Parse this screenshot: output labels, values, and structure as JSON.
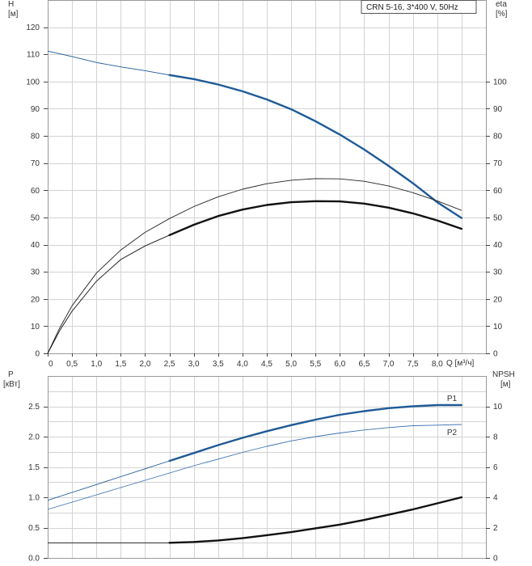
{
  "chart_data": [
    {
      "type": "line",
      "legend": "CRN 5-16, 3*400 V, 50Hz",
      "legend_position": "top-right",
      "grid": true,
      "xlabel": "Q [м³/ч]",
      "ylabel_left": [
        "H",
        "[м]"
      ],
      "ylabel_right": [
        "eta",
        "[%]"
      ],
      "xlim": [
        0,
        9.0
      ],
      "ylim_left": [
        0,
        130
      ],
      "ylim_right": [
        0,
        130
      ],
      "x_ticks": [
        "0",
        "0,5",
        "1,0",
        "1,5",
        "2,0",
        "2,5",
        "3,0",
        "3,5",
        "4,0",
        "4,5",
        "5,0",
        "5,5",
        "6,0",
        "6,5",
        "7,0",
        "7,5",
        "8,0"
      ],
      "y_ticks_left": [
        "0",
        "10",
        "20",
        "30",
        "40",
        "50",
        "60",
        "70",
        "80",
        "90",
        "100",
        "110",
        "120"
      ],
      "y_ticks_right": [
        "0",
        "10",
        "20",
        "30",
        "40",
        "50",
        "60",
        "70",
        "80",
        "90",
        "100"
      ],
      "series": [
        {
          "axis": "left",
          "color": "#1f5a96",
          "thin_x": [
            0,
            0.5,
            1.0,
            1.5,
            2.0,
            2.5
          ],
          "thin_y": [
            111.2,
            109.2,
            107.0,
            105.4,
            104.0,
            102.4
          ],
          "thick_x": [
            2.5,
            3.0,
            3.5,
            4.0,
            4.5,
            5.0,
            5.5,
            6.0,
            6.5,
            7.0,
            7.5,
            8.0,
            8.5
          ],
          "thick_y": [
            102.4,
            100.9,
            98.9,
            96.4,
            93.4,
            89.8,
            85.4,
            80.5,
            75.0,
            69.0,
            62.6,
            55.6,
            49.8
          ]
        },
        {
          "axis": "right",
          "color": "#222222",
          "thin_x": [
            0,
            0.25,
            0.5,
            1.0,
            1.5,
            2.0,
            2.5,
            3.0,
            3.5,
            4.0,
            4.5,
            5.0,
            5.5,
            6.0,
            6.5,
            7.0,
            7.5,
            8.0,
            8.5
          ],
          "thin_y": [
            0,
            9.5,
            17.5,
            29.5,
            38.0,
            44.5,
            49.6,
            54.0,
            57.6,
            60.4,
            62.4,
            63.7,
            64.3,
            64.2,
            63.3,
            61.6,
            59.1,
            56.1,
            52.6
          ]
        },
        {
          "axis": "right",
          "color": "#111111",
          "thin_x": [
            0,
            0.25,
            0.5,
            1.0,
            1.5,
            2.0,
            2.5
          ],
          "thin_y": [
            0,
            8.5,
            15.5,
            26.5,
            34.5,
            39.5,
            43.5
          ],
          "thick_x": [
            2.5,
            3.0,
            3.5,
            4.0,
            4.5,
            5.0,
            5.5,
            6.0,
            6.5,
            7.0,
            7.5,
            8.0,
            8.5
          ],
          "thick_y": [
            43.5,
            47.3,
            50.5,
            52.9,
            54.6,
            55.6,
            56.0,
            55.9,
            55.1,
            53.6,
            51.5,
            48.9,
            45.8
          ]
        }
      ]
    },
    {
      "type": "line",
      "grid": true,
      "ylabel_left": [
        "P",
        "[кВт]"
      ],
      "ylabel_right": [
        "NPSH",
        "[м]"
      ],
      "xlim": [
        0,
        9.0
      ],
      "ylim_left": [
        0,
        3.0
      ],
      "ylim_right": [
        0,
        12
      ],
      "y_ticks_left": [
        "0.0",
        "0.5",
        "1.0",
        "1.5",
        "2.0",
        "2.5"
      ],
      "y_ticks_right": [
        "0",
        "2",
        "4",
        "6",
        "8",
        "10"
      ],
      "series": [
        {
          "name": "P1",
          "axis": "left",
          "color": "#1f5a96",
          "thin_x": [
            0,
            0.5,
            1.0,
            1.5,
            2.0,
            2.5
          ],
          "thin_y": [
            0.95,
            1.08,
            1.21,
            1.34,
            1.47,
            1.6
          ],
          "thick_x": [
            2.5,
            3.0,
            3.5,
            4.0,
            4.5,
            5.0,
            5.5,
            6.0,
            6.5,
            7.0,
            7.5,
            8.0,
            8.5
          ],
          "thick_y": [
            1.6,
            1.73,
            1.86,
            1.98,
            2.09,
            2.19,
            2.28,
            2.36,
            2.42,
            2.47,
            2.5,
            2.52,
            2.52
          ]
        },
        {
          "name": "P2",
          "axis": "left",
          "color": "#3b72b0",
          "thin_x": [
            0,
            0.5,
            1.0,
            1.5,
            2.0,
            2.5,
            3.0,
            3.5,
            4.0,
            4.5,
            5.0,
            5.5,
            6.0,
            6.5,
            7.0,
            7.5,
            8.0,
            8.5
          ],
          "thin_y": [
            0.8,
            0.92,
            1.04,
            1.16,
            1.28,
            1.4,
            1.52,
            1.63,
            1.74,
            1.84,
            1.93,
            2.0,
            2.06,
            2.11,
            2.15,
            2.18,
            2.19,
            2.2
          ]
        },
        {
          "axis": "right",
          "color": "#111111",
          "thin_x": [
            0,
            2.5
          ],
          "thin_y": [
            1.0,
            1.0
          ],
          "thick_x": [
            2.5,
            3.0,
            3.5,
            4.0,
            4.5,
            5.0,
            5.5,
            6.0,
            6.5,
            7.0,
            7.5,
            8.0,
            8.5
          ],
          "thick_y": [
            1.0,
            1.05,
            1.15,
            1.3,
            1.5,
            1.7,
            1.95,
            2.2,
            2.5,
            2.85,
            3.2,
            3.6,
            4.0
          ]
        }
      ]
    }
  ]
}
